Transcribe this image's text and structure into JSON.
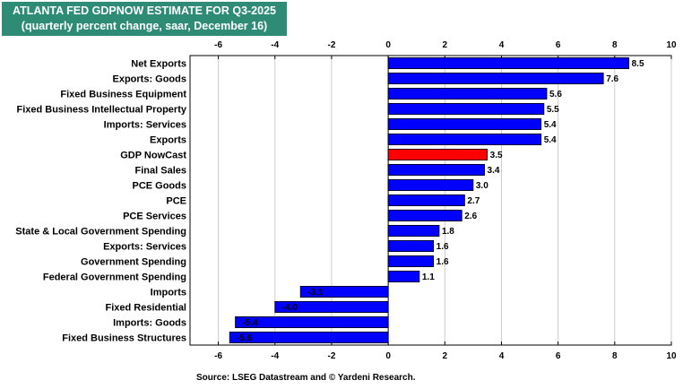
{
  "header": {
    "title": "ATLANTA FED GDPNOW ESTIMATE FOR Q3-2025",
    "subtitle": "(quarterly percent change, saar, December 16)"
  },
  "source": "Source: LSEG Datastream and © Yardeni Research.",
  "colors": {
    "title_bg": "#2e8b75",
    "bar": "#0000ff",
    "highlight_bar": "#ff0000",
    "grid": "#cccccc"
  },
  "chart_data": {
    "type": "bar",
    "orientation": "horizontal",
    "title": "ATLANTA FED GDPNOW ESTIMATE FOR Q3-2025",
    "subtitle": "(quarterly percent change, saar, December 16)",
    "categories": [
      "Net Exports",
      "Exports: Goods",
      "Fixed Business Equipment",
      "Fixed Business Intellectual Property",
      "Imports: Services",
      "Exports",
      "GDP NowCast",
      "Final Sales",
      "PCE Goods",
      "PCE",
      "PCE Services",
      "State & Local Government Spending",
      "Exports: Services",
      "Government Spending",
      "Federal Government Spending",
      "Imports",
      "Fixed Residential",
      "Imports: Goods",
      "Fixed Business Structures"
    ],
    "values": [
      8.5,
      7.6,
      5.6,
      5.5,
      5.4,
      5.4,
      3.5,
      3.4,
      3.0,
      2.7,
      2.6,
      1.8,
      1.6,
      1.6,
      1.1,
      -3.1,
      -4.0,
      -5.4,
      -5.6
    ],
    "value_labels": [
      "8.5",
      "7.6",
      "5.6",
      "5.5",
      "5.4",
      "5.4",
      "3.5",
      "3.4",
      "3.0",
      "2.7",
      "2.6",
      "1.8",
      "1.6",
      "1.6",
      "1.1",
      "-3.1",
      "-4.0",
      "-5.4",
      "-5.6"
    ],
    "highlight": "GDP NowCast",
    "xlim": [
      -7,
      10
    ],
    "ticks": [
      -6,
      -4,
      -2,
      0,
      2,
      4,
      6,
      8,
      10
    ],
    "grid": true,
    "tick_labels_top_and_bottom": true
  }
}
